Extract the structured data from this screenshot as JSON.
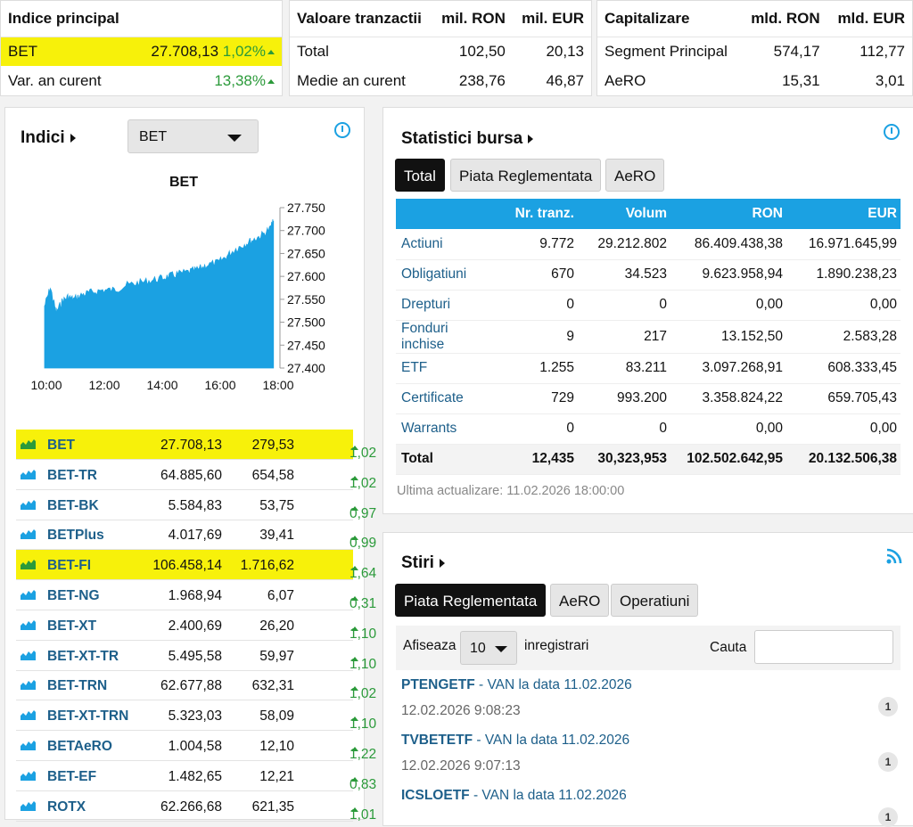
{
  "summary": {
    "indice": {
      "title": "Indice principal",
      "rows": [
        {
          "name": "BET",
          "value": "27.708,13",
          "change": "1,02%"
        },
        {
          "name": "Var. an curent",
          "value": "13,38%"
        }
      ]
    },
    "tranzactii": {
      "title": "Valoare tranzactii",
      "col1": "mil. RON",
      "col2": "mil. EUR",
      "rows": [
        {
          "name": "Total",
          "ron": "102,50",
          "eur": "20,13"
        },
        {
          "name": "Medie an curent",
          "ron": "238,76",
          "eur": "46,87"
        }
      ]
    },
    "capitalizare": {
      "title": "Capitalizare",
      "col1": "mld. RON",
      "col2": "mld. EUR",
      "rows": [
        {
          "name": "Segment Principal",
          "ron": "574,17",
          "eur": "112,77"
        },
        {
          "name": "AeRO",
          "ron": "15,31",
          "eur": "3,01"
        }
      ]
    }
  },
  "indici": {
    "title": "Indici",
    "selected": "BET",
    "rows": [
      {
        "name": "BET",
        "value": "27.708,13",
        "points": "279,53",
        "pct": "1,02"
      },
      {
        "name": "BET-TR",
        "value": "64.885,60",
        "points": "654,58",
        "pct": "1,02"
      },
      {
        "name": "BET-BK",
        "value": "5.584,83",
        "points": "53,75",
        "pct": "0,97"
      },
      {
        "name": "BETPlus",
        "value": "4.017,69",
        "points": "39,41",
        "pct": "0,99"
      },
      {
        "name": "BET-FI",
        "value": "106.458,14",
        "points": "1.716,62",
        "pct": "1,64"
      },
      {
        "name": "BET-NG",
        "value": "1.968,94",
        "points": "6,07",
        "pct": "0,31"
      },
      {
        "name": "BET-XT",
        "value": "2.400,69",
        "points": "26,20",
        "pct": "1,10"
      },
      {
        "name": "BET-XT-TR",
        "value": "5.495,58",
        "points": "59,97",
        "pct": "1,10"
      },
      {
        "name": "BET-TRN",
        "value": "62.677,88",
        "points": "632,31",
        "pct": "1,02"
      },
      {
        "name": "BET-XT-TRN",
        "value": "5.323,03",
        "points": "58,09",
        "pct": "1,10"
      },
      {
        "name": "BETAeRO",
        "value": "1.004,58",
        "points": "12,10",
        "pct": "1,22"
      },
      {
        "name": "BET-EF",
        "value": "1.482,65",
        "points": "12,21",
        "pct": "0,83"
      },
      {
        "name": "ROTX",
        "value": "62.266,68",
        "points": "621,35",
        "pct": "1,01"
      }
    ],
    "highlighted": [
      "BET",
      "BET-FI"
    ],
    "colors": {
      "accent": "#1ba1e2",
      "highlight": "#f7f10a",
      "up": "#2b9a3a",
      "link": "#1d5f8a"
    }
  },
  "chart_data": {
    "type": "area",
    "title": "BET",
    "x_labels": [
      "10:00",
      "12:00",
      "14:00",
      "16:00",
      "18:00"
    ],
    "y_ticks": [
      "27.750",
      "27.700",
      "27.650",
      "27.600",
      "27.550",
      "27.500",
      "27.450",
      "27.400"
    ],
    "ylim": [
      27400,
      27750
    ],
    "x_hours": [
      10.0,
      10.2,
      10.4,
      10.6,
      10.8,
      11.0,
      11.3,
      11.6,
      12.0,
      12.4,
      12.8,
      13.2,
      13.6,
      14.0,
      14.3,
      14.6,
      15.0,
      15.3,
      15.6,
      16.0,
      16.3,
      16.6,
      16.9,
      17.2,
      17.5,
      17.8,
      17.9
    ],
    "y_values": [
      27535,
      27575,
      27520,
      27545,
      27555,
      27550,
      27560,
      27565,
      27570,
      27570,
      27580,
      27585,
      27590,
      27595,
      27600,
      27605,
      27610,
      27615,
      27625,
      27630,
      27645,
      27660,
      27670,
      27680,
      27690,
      27705,
      27720
    ]
  },
  "statistici": {
    "title": "Statistici bursa",
    "tabs": [
      "Total",
      "Piata Reglementata",
      "AeRO"
    ],
    "columns": [
      "",
      "Nr. tranz.",
      "Volum",
      "RON",
      "EUR"
    ],
    "rows": [
      [
        "Actiuni",
        "9.772",
        "29.212.802",
        "86.409.438,38",
        "16.971.645,99"
      ],
      [
        "Obligatiuni",
        "670",
        "34.523",
        "9.623.958,94",
        "1.890.238,23"
      ],
      [
        "Drepturi",
        "0",
        "0",
        "0,00",
        "0,00"
      ],
      [
        "Fonduri inchise",
        "9",
        "217",
        "13.152,50",
        "2.583,28"
      ],
      [
        "ETF",
        "1.255",
        "83.211",
        "3.097.268,91",
        "608.333,45"
      ],
      [
        "Certificate",
        "729",
        "993.200",
        "3.358.824,22",
        "659.705,43"
      ],
      [
        "Warrants",
        "0",
        "0",
        "0,00",
        "0,00"
      ]
    ],
    "total": [
      "Total",
      "12,435",
      "30,323,953",
      "102.502.642,95",
      "20.132.506,38"
    ],
    "updated": "Ultima actualizare: 11.02.2026 18:00:00"
  },
  "stiri": {
    "title": "Stiri",
    "tabs": [
      "Piata Reglementata",
      "AeRO",
      "Operatiuni"
    ],
    "show_label": "Afiseaza",
    "page_size": "10",
    "records_label": "inregistrari",
    "search_label": "Cauta",
    "search_value": "",
    "items": [
      {
        "symbol": "PTENGETF",
        "text": " - VAN la data 11.02.2026",
        "date": "12.02.2026 9:08:23",
        "count": "1"
      },
      {
        "symbol": "TVBETETF",
        "text": " - VAN la data 11.02.2026",
        "date": "12.02.2026 9:07:13",
        "count": "1"
      },
      {
        "symbol": "ICSLOETF",
        "text": " - VAN la data 11.02.2026",
        "date": "",
        "count": "1"
      }
    ]
  }
}
